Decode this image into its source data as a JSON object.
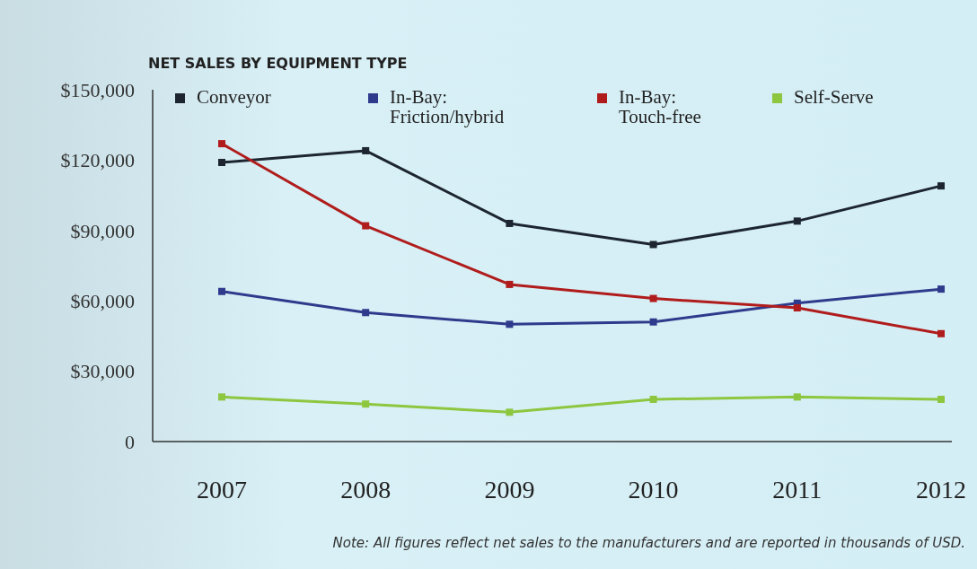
{
  "chart_data": {
    "type": "line",
    "title": "NET SALES BY EQUIPMENT TYPE",
    "categories": [
      "2007",
      "2008",
      "2009",
      "2010",
      "2011",
      "2012"
    ],
    "series": [
      {
        "name": "Conveyor",
        "color": "#1c2530",
        "values": [
          119000,
          124000,
          93000,
          84000,
          94000,
          109000
        ]
      },
      {
        "name": "In-Bay:\nFriction/hybrid",
        "color": "#2e3a8c",
        "values": [
          64000,
          55000,
          50000,
          51000,
          59000,
          65000
        ]
      },
      {
        "name": "In-Bay:\nTouch-free",
        "color": "#b01c1c",
        "values": [
          127000,
          92000,
          67000,
          61000,
          57000,
          46000
        ]
      },
      {
        "name": "Self-Serve",
        "color": "#8dc63f",
        "values": [
          19000,
          16000,
          12500,
          18000,
          19000,
          18000
        ]
      }
    ],
    "ylim": [
      0,
      150000
    ],
    "yticks": [
      {
        "value": 0,
        "label": "0"
      },
      {
        "value": 30000,
        "label": "$30,000"
      },
      {
        "value": 60000,
        "label": "$60,000"
      },
      {
        "value": 90000,
        "label": "$90,000"
      },
      {
        "value": 120000,
        "label": "$120,000"
      },
      {
        "value": 150000,
        "label": "$150,000"
      }
    ],
    "marker": "square",
    "line_style": "solid",
    "legend": "top",
    "grid": false,
    "annotations": [
      "Note: All figures reflect net sales to the manufacturers and are reported in thousands of USD."
    ]
  }
}
